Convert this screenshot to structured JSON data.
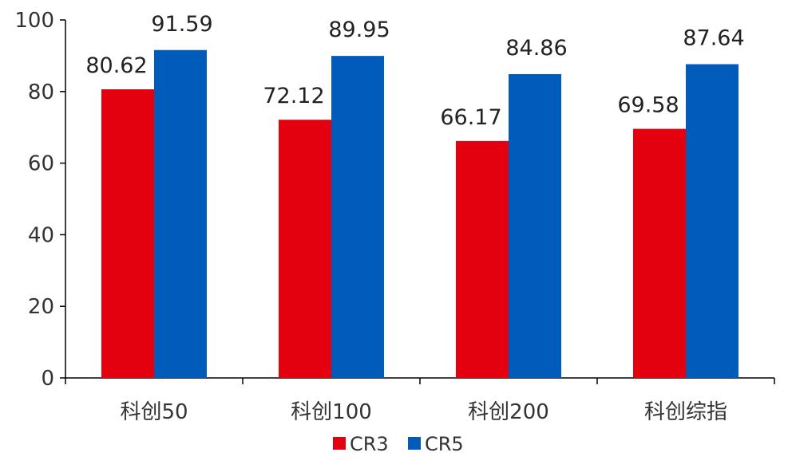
{
  "chart_data": {
    "type": "bar",
    "categories": [
      "科创50",
      "科创100",
      "科创200",
      "科创综指"
    ],
    "series": [
      {
        "name": "CR3",
        "color": "#e3000f",
        "values": [
          80.62,
          72.12,
          66.17,
          69.58
        ]
      },
      {
        "name": "CR5",
        "color": "#005bbb",
        "values": [
          91.59,
          89.95,
          84.86,
          87.64
        ]
      }
    ],
    "ylim": [
      0,
      100
    ],
    "yticks": [
      0,
      20,
      40,
      60,
      80,
      100
    ],
    "grid": false,
    "legend_position": "bottom-center",
    "title": "",
    "xlabel": "",
    "ylabel": ""
  }
}
